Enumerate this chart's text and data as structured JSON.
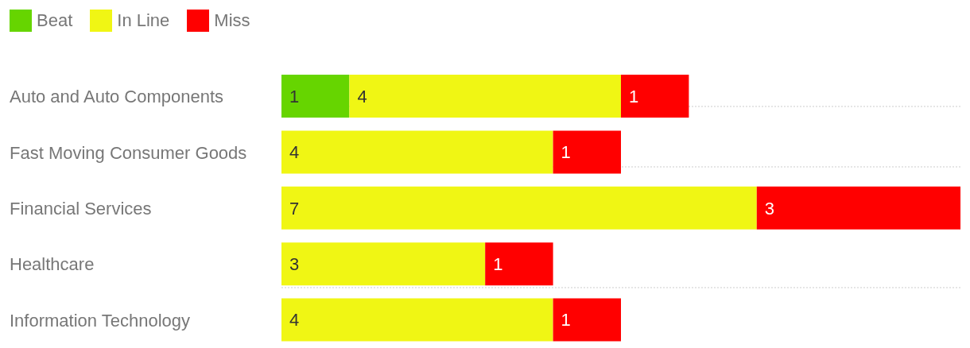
{
  "chart_data": {
    "type": "bar",
    "orientation": "horizontal",
    "stacked": true,
    "data_labels": true,
    "legend": "top left",
    "grid": "y",
    "categories": [
      "Auto and Auto Components",
      "Fast Moving Consumer Goods",
      "Financial Services",
      "Healthcare",
      "Information Technology"
    ],
    "series": [
      {
        "name": "Beat",
        "color": "#66d500",
        "values": [
          1,
          null,
          null,
          null,
          null
        ]
      },
      {
        "name": "In Line",
        "color": "#f0f614",
        "values": [
          4,
          4,
          7,
          3,
          4
        ]
      },
      {
        "name": "Miss",
        "color": "#ff0000",
        "values": [
          1,
          1,
          3,
          1,
          1
        ]
      }
    ]
  }
}
